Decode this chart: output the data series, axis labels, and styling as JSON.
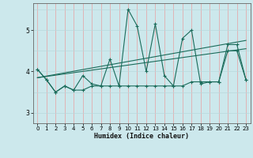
{
  "title": "",
  "xlabel": "Humidex (Indice chaleur)",
  "bg_color": "#cce8ec",
  "grid_color_v": "#e8a0a0",
  "grid_color_h": "#b8d8dc",
  "line_color": "#1a6b5a",
  "xlim": [
    -0.5,
    23.5
  ],
  "ylim": [
    2.75,
    5.65
  ],
  "xticks": [
    0,
    1,
    2,
    3,
    4,
    5,
    6,
    7,
    8,
    9,
    10,
    11,
    12,
    13,
    14,
    15,
    16,
    17,
    18,
    19,
    20,
    21,
    22,
    23
  ],
  "yticks": [
    3,
    4,
    5
  ],
  "line1_x": [
    0,
    1,
    2,
    3,
    4,
    5,
    6,
    7,
    8,
    9,
    10,
    11,
    12,
    13,
    14,
    15,
    16,
    17,
    18,
    19,
    20,
    21,
    22,
    23
  ],
  "line1_y": [
    4.05,
    3.8,
    3.5,
    3.65,
    3.55,
    3.9,
    3.7,
    3.65,
    4.3,
    3.65,
    5.5,
    5.1,
    4.0,
    5.15,
    3.9,
    3.65,
    4.8,
    5.0,
    3.7,
    3.75,
    3.75,
    4.65,
    4.65,
    3.8
  ],
  "line2_x": [
    0,
    1,
    2,
    3,
    4,
    5,
    6,
    7,
    8,
    9,
    10,
    11,
    12,
    13,
    14,
    15,
    16,
    17,
    18,
    19,
    20,
    21,
    22,
    23
  ],
  "line2_y": [
    4.05,
    3.8,
    3.5,
    3.65,
    3.55,
    3.55,
    3.65,
    3.65,
    3.65,
    3.65,
    3.65,
    3.65,
    3.65,
    3.65,
    3.65,
    3.65,
    3.65,
    3.75,
    3.75,
    3.75,
    3.75,
    4.5,
    4.5,
    3.8
  ],
  "line3_x": [
    0,
    23
  ],
  "line3_y": [
    3.85,
    4.55
  ],
  "line4_x": [
    0,
    23
  ],
  "line4_y": [
    3.85,
    4.75
  ]
}
